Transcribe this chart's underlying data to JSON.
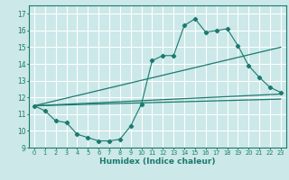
{
  "xlabel": "Humidex (Indice chaleur)",
  "xlim": [
    -0.5,
    23.5
  ],
  "ylim": [
    9,
    17.5
  ],
  "yticks": [
    9,
    10,
    11,
    12,
    13,
    14,
    15,
    16,
    17
  ],
  "xticks": [
    0,
    1,
    2,
    3,
    4,
    5,
    6,
    7,
    8,
    9,
    10,
    11,
    12,
    13,
    14,
    15,
    16,
    17,
    18,
    19,
    20,
    21,
    22,
    23
  ],
  "bg_color": "#cce8e8",
  "grid_color": "#ffffff",
  "line_color": "#1a7a6e",
  "series1_x": [
    0,
    1,
    2,
    3,
    4,
    5,
    6,
    7,
    8,
    9,
    10,
    11,
    12,
    13,
    14,
    15,
    16,
    17,
    18,
    19,
    20,
    21,
    22,
    23
  ],
  "series1_y": [
    11.5,
    11.2,
    10.6,
    10.5,
    9.8,
    9.6,
    9.4,
    9.4,
    9.5,
    10.3,
    11.6,
    14.2,
    14.5,
    14.5,
    16.3,
    16.7,
    15.9,
    16.0,
    16.1,
    15.1,
    13.9,
    13.2,
    12.6,
    12.3
  ],
  "series2_x": [
    0,
    23
  ],
  "series2_y": [
    11.5,
    15.0
  ],
  "series3_x": [
    0,
    23
  ],
  "series3_y": [
    11.5,
    12.2
  ],
  "series4_x": [
    0,
    23
  ],
  "series4_y": [
    11.5,
    11.9
  ]
}
